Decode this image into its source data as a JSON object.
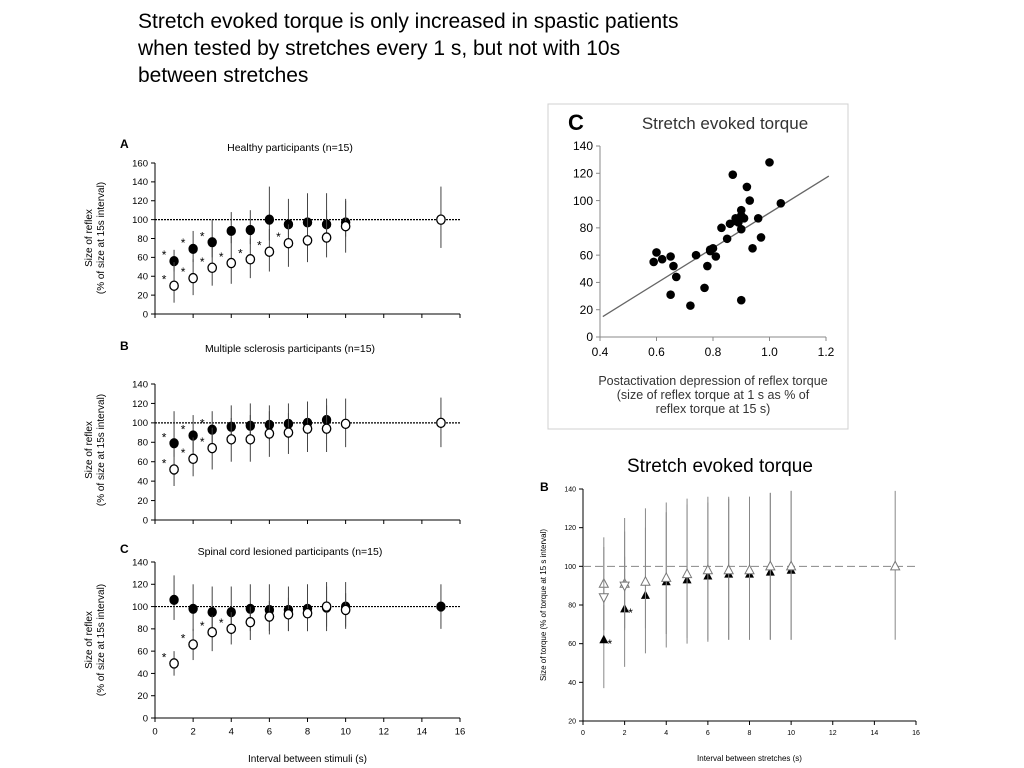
{
  "slide_title": "Stretch evoked torque is only increased in spastic patients\n when tested by stretches every 1 s, but not with 10s\nbetween stretches",
  "sub_caption": "Stretch evoked torque",
  "chart_data": [
    {
      "id": "A",
      "type": "scatter",
      "panel_letter": "A",
      "title": "Healthy participants (n=15)",
      "ylabel": "Size of reflex\n(% of size at 15s interval)",
      "xlabel": "",
      "xlim": [
        0,
        16
      ],
      "ylim": [
        0,
        160
      ],
      "yticks": [
        0,
        20,
        40,
        60,
        80,
        100,
        120,
        140,
        160
      ],
      "reference_line": 100,
      "series": [
        {
          "marker": "filled-circle",
          "points": [
            [
              1,
              56,
              45,
              68
            ],
            [
              2,
              69,
              55,
              88
            ],
            [
              3,
              76,
              60,
              100
            ],
            [
              4,
              88,
              75,
              108
            ],
            [
              5,
              89,
              74,
              110
            ],
            [
              6,
              100,
              78,
              135
            ],
            [
              7,
              95,
              78,
              122
            ],
            [
              8,
              97,
              80,
              128
            ],
            [
              9,
              95,
              80,
              128
            ],
            [
              10,
              97,
              82,
              122
            ]
          ],
          "star": [
            1,
            2,
            3
          ]
        },
        {
          "marker": "open-circle",
          "points": [
            [
              1,
              30,
              12,
              55
            ],
            [
              2,
              38,
              20,
              58
            ],
            [
              3,
              49,
              30,
              70
            ],
            [
              4,
              54,
              32,
              82
            ],
            [
              5,
              58,
              38,
              80
            ],
            [
              6,
              66,
              45,
              90
            ],
            [
              7,
              75,
              50,
              95
            ],
            [
              8,
              78,
              55,
              105
            ],
            [
              9,
              81,
              60,
              110
            ],
            [
              10,
              93,
              65,
              120
            ],
            [
              15,
              100,
              70,
              135
            ]
          ],
          "star": [
            1,
            2,
            3,
            4,
            5,
            6,
            7
          ]
        }
      ]
    },
    {
      "id": "B",
      "type": "scatter",
      "panel_letter": "B",
      "title": "Multiple sclerosis participants (n=15)",
      "ylabel": "Size of reflex\n(% of size at 15s interval)",
      "xlabel": "",
      "xlim": [
        0,
        16
      ],
      "ylim": [
        0,
        140
      ],
      "yticks": [
        0,
        20,
        40,
        60,
        80,
        100,
        120,
        140
      ],
      "reference_line": 100,
      "series": [
        {
          "marker": "filled-circle",
          "points": [
            [
              1,
              79,
              65,
              112
            ],
            [
              2,
              87,
              70,
              108
            ],
            [
              3,
              93,
              78,
              112
            ],
            [
              4,
              96,
              80,
              118
            ],
            [
              5,
              97,
              80,
              120
            ],
            [
              6,
              98,
              82,
              118
            ],
            [
              7,
              99,
              83,
              120
            ],
            [
              8,
              100,
              85,
              122
            ],
            [
              9,
              103,
              88,
              125
            ]
          ],
          "star": [
            1,
            2,
            3
          ]
        },
        {
          "marker": "open-circle",
          "points": [
            [
              1,
              52,
              35,
              72
            ],
            [
              2,
              63,
              45,
              85
            ],
            [
              3,
              74,
              52,
              95
            ],
            [
              4,
              83,
              60,
              105
            ],
            [
              5,
              83,
              60,
              108
            ],
            [
              6,
              89,
              65,
              112
            ],
            [
              7,
              90,
              68,
              110
            ],
            [
              8,
              94,
              70,
              115
            ],
            [
              9,
              94,
              70,
              118
            ],
            [
              10,
              99,
              75,
              125
            ],
            [
              15,
              100,
              75,
              126
            ]
          ],
          "star": [
            1,
            2,
            3
          ]
        }
      ]
    },
    {
      "id": "C",
      "type": "scatter",
      "panel_letter": "C",
      "title": "Spinal cord lesioned participants (n=15)",
      "ylabel": "Size of reflex\n(% of size at 15s interval)",
      "xlabel": "Interval between stimuli (s)",
      "xlim": [
        0,
        16
      ],
      "ylim": [
        0,
        140
      ],
      "xticks": [
        0,
        2,
        4,
        6,
        8,
        10,
        12,
        14,
        16
      ],
      "yticks": [
        0,
        20,
        40,
        60,
        80,
        100,
        120,
        140
      ],
      "reference_line": 100,
      "series": [
        {
          "marker": "filled-circle",
          "points": [
            [
              1,
              106,
              88,
              128
            ],
            [
              2,
              98,
              78,
              120
            ],
            [
              3,
              95,
              75,
              118
            ],
            [
              4,
              95,
              75,
              118
            ],
            [
              5,
              98,
              78,
              120
            ],
            [
              6,
              97,
              78,
              120
            ],
            [
              7,
              97,
              78,
              118
            ],
            [
              8,
              98,
              78,
              120
            ],
            [
              9,
              99,
              78,
              122
            ],
            [
              10,
              100,
              80,
              122
            ],
            [
              15,
              100,
              80,
              120
            ]
          ],
          "star": []
        },
        {
          "marker": "open-circle",
          "points": [
            [
              1,
              49,
              38,
              60
            ],
            [
              2,
              66,
              52,
              80
            ],
            [
              3,
              77,
              60,
              92
            ],
            [
              4,
              80,
              66,
              95
            ],
            [
              5,
              86,
              70,
              100
            ],
            [
              6,
              91,
              75,
              105
            ],
            [
              7,
              93,
              78,
              108
            ],
            [
              8,
              94,
              78,
              110
            ],
            [
              9,
              100,
              82,
              118
            ],
            [
              10,
              97,
              82,
              112
            ]
          ],
          "star": [
            1,
            2,
            3,
            4
          ]
        }
      ]
    },
    {
      "id": "C2",
      "type": "scatter",
      "panel_letter": "C",
      "title": "Stretch evoked torque",
      "xlabel": "Postactivation depression of reflex torque\n(size of reflex torque at 1 s as % of\nreflex torque at 15 s)",
      "ylabel": "",
      "xlim": [
        0.4,
        1.2
      ],
      "ylim": [
        0,
        140
      ],
      "xticks": [
        0.4,
        0.6,
        0.8,
        1.0,
        1.2
      ],
      "yticks": [
        0,
        20,
        40,
        60,
        80,
        100,
        120,
        140
      ],
      "x": [
        0.59,
        0.6,
        0.62,
        0.65,
        0.66,
        0.67,
        0.65,
        0.72,
        0.74,
        0.77,
        0.78,
        0.79,
        0.8,
        0.81,
        0.79,
        0.83,
        0.85,
        0.86,
        0.87,
        0.88,
        0.89,
        0.9,
        0.9,
        0.91,
        0.93,
        0.94,
        0.88,
        0.9,
        0.96,
        0.97,
        1.0,
        1.04,
        0.9,
        0.92
      ],
      "y": [
        55,
        62,
        57,
        59,
        52,
        44,
        31,
        23,
        60,
        36,
        52,
        63,
        65,
        59,
        64,
        80,
        72,
        83,
        119,
        87,
        84,
        89,
        93,
        87,
        100,
        65,
        85,
        79,
        87,
        73,
        128,
        98,
        27,
        110
      ],
      "trendline": [
        [
          0.41,
          15
        ],
        [
          1.21,
          118
        ]
      ]
    },
    {
      "id": "B2",
      "type": "scatter",
      "panel_letter": "B",
      "title": "",
      "ylabel": "Size of torque (% of torque at 15 s interval)",
      "xlabel": "Interval between stretches (s)",
      "xlim": [
        0,
        16
      ],
      "ylim": [
        20,
        140
      ],
      "xticks": [
        0,
        2,
        4,
        6,
        8,
        10,
        12,
        14,
        16
      ],
      "yticks": [
        20,
        40,
        60,
        80,
        100,
        120,
        140
      ],
      "reference_line": 100,
      "series": [
        {
          "marker": "filled-triangle",
          "points": [
            [
              1,
              62,
              37,
              80
            ],
            [
              2,
              78,
              48,
              105
            ],
            [
              3,
              85,
              55,
              120
            ],
            [
              4,
              92,
              58,
              128
            ],
            [
              5,
              93,
              60,
              132
            ],
            [
              6,
              95,
              61,
              133
            ],
            [
              7,
              96,
              62,
              135
            ],
            [
              8,
              96,
              62,
              136
            ],
            [
              9,
              97,
              62,
              138
            ],
            [
              10,
              98,
              62,
              139
            ]
          ],
          "star": [
            1,
            2
          ]
        },
        {
          "marker": "open-triangle",
          "points": [
            [
              1,
              91,
              67,
              115
            ],
            [
              2,
              91,
              67,
              125
            ],
            [
              3,
              92,
              68,
              130
            ],
            [
              4,
              94,
              65,
              133
            ],
            [
              5,
              96,
              63,
              135
            ],
            [
              6,
              98,
              62,
              136
            ],
            [
              7,
              98,
              62,
              136
            ],
            [
              8,
              98,
              62,
              136
            ],
            [
              9,
              100,
              62,
              138
            ],
            [
              10,
              100,
              62,
              139
            ],
            [
              15,
              100,
              62,
              139
            ]
          ],
          "star": []
        },
        {
          "marker": "open-triangle-down",
          "points": [
            [
              1,
              84,
              67,
              110
            ],
            [
              2,
              90,
              68,
              118
            ]
          ],
          "star": []
        }
      ]
    }
  ]
}
